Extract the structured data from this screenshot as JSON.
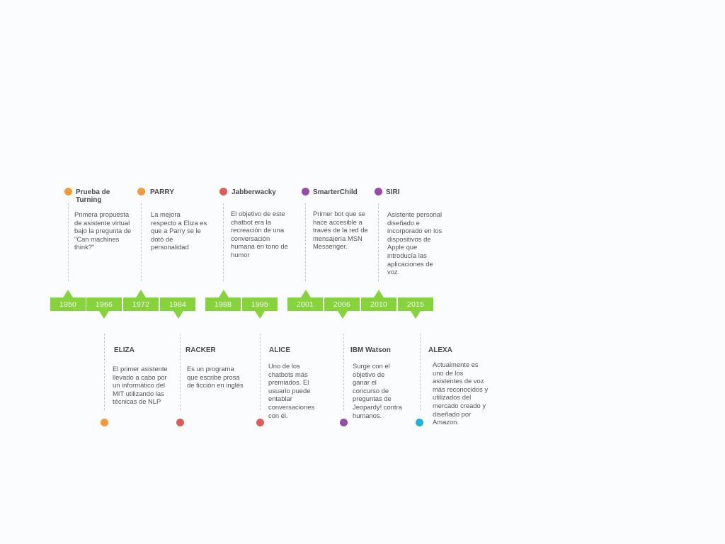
{
  "years": [
    "1950",
    "1966",
    "1972",
    "1984",
    "1988",
    "1995",
    "2001",
    "2006",
    "2010",
    "2015"
  ],
  "colors": {
    "bar": "#86d33c",
    "orange": "#f7993a",
    "red": "#e05a5a",
    "purple": "#984aa9",
    "cyan": "#1fb2d8",
    "line": "#c9c9c9"
  },
  "events": [
    {
      "year": "1950",
      "position": "top",
      "color": "orange",
      "title": "Prueba de Turning",
      "text": "Primera propuesta de asistente virtual bajo la pregunta de \"Can machines think?\""
    },
    {
      "year": "1966",
      "position": "bottom",
      "color": "orange",
      "title": "ELIZA",
      "text": "El primer asistente llevado a cabo por un informático del MIT utilizando las técnicas de NLP"
    },
    {
      "year": "1972",
      "position": "top",
      "color": "orange",
      "title": "PARRY",
      "text": "La mejora respecto a Eliza es que a Parry se le dotó de personalidad"
    },
    {
      "year": "1984",
      "position": "bottom",
      "color": "red",
      "title": "RACKER",
      "text": "Es un programa que escribe prosa de ficción en inglés"
    },
    {
      "year": "1988",
      "position": "top",
      "color": "red",
      "title": "Jabberwacky",
      "text": "El objetivo de este chatbot era la recreación de una conversación humana en tono de humor"
    },
    {
      "year": "1995",
      "position": "bottom",
      "color": "red",
      "title": "ALICE",
      "text": "Uno de los chatbots más premiados. El usuario puede entablar conversaciones con él."
    },
    {
      "year": "2001",
      "position": "top",
      "color": "purple",
      "title": "SmarterChild",
      "text": "Primer bot que se hace accesible a través de la red de mensajería MSN Messenger."
    },
    {
      "year": "2006",
      "position": "bottom",
      "color": "purple",
      "title": "IBM Watson",
      "text": "Surge con el objetivo de ganar el concurso de preguntas de Jeopardy! contra humanos."
    },
    {
      "year": "2010",
      "position": "top",
      "color": "purple",
      "title": "SIRI",
      "text": "Asistente personal diseñado e incorporado en los dispositivos de Apple que introducía las aplicaciones de voz."
    },
    {
      "year": "2015",
      "position": "bottom",
      "color": "cyan",
      "title": "ALEXA",
      "text": "Actualmente es uno de los asistentes de voz más reconocidos y utilizados del mercado creado y diseñado por Amazon."
    }
  ]
}
